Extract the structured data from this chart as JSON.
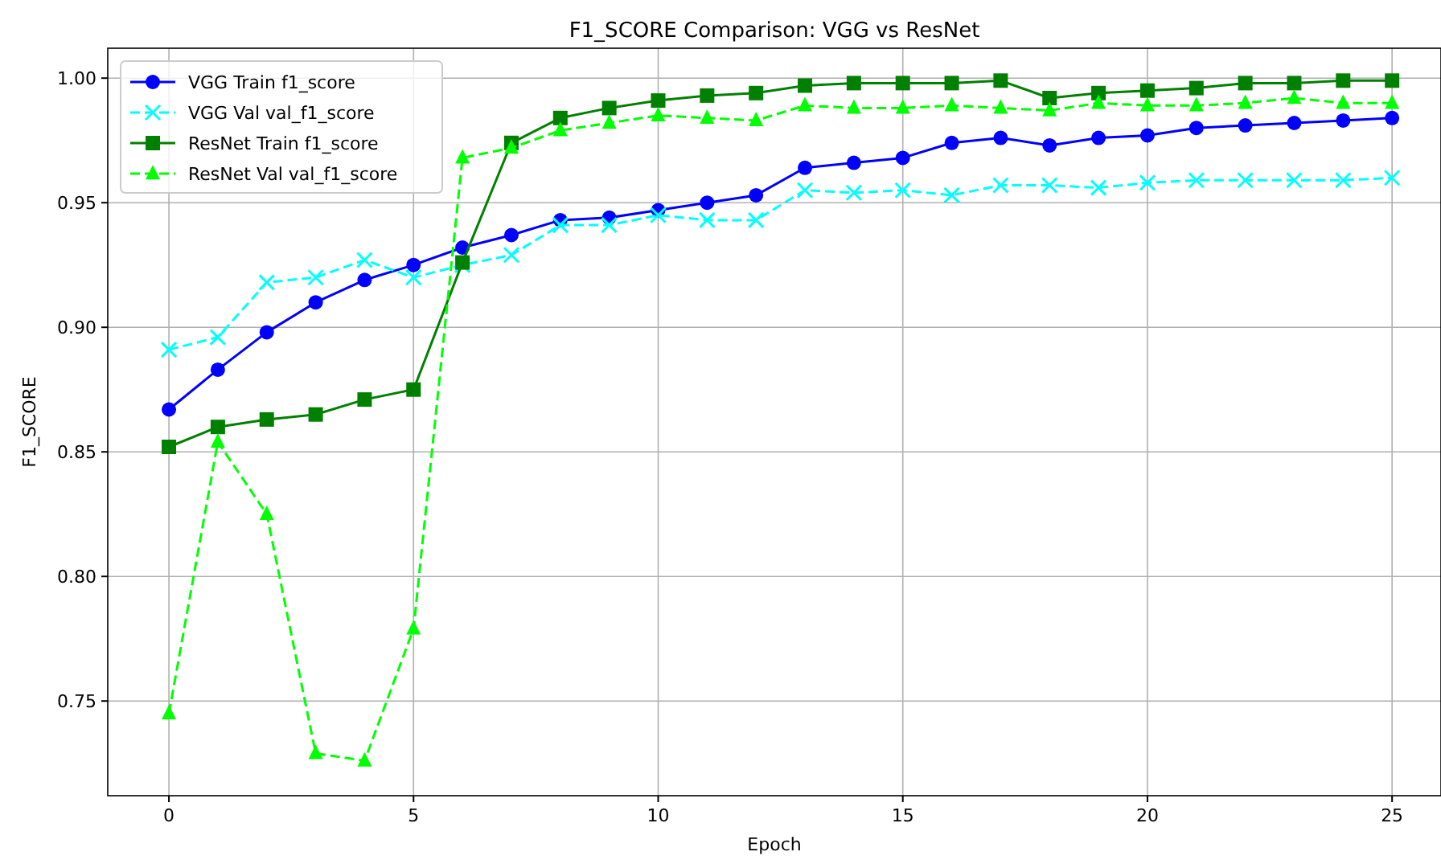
{
  "chart_data": {
    "type": "line",
    "title": "F1_SCORE Comparison: VGG vs ResNet",
    "xlabel": "Epoch",
    "ylabel": "F1_SCORE",
    "x": [
      0,
      1,
      2,
      3,
      4,
      5,
      6,
      7,
      8,
      9,
      10,
      11,
      12,
      13,
      14,
      15,
      16,
      17,
      18,
      19,
      20,
      21,
      22,
      23,
      24,
      25
    ],
    "xlim": [
      -1.25,
      26
    ],
    "xticks": [
      0,
      5,
      10,
      15,
      20,
      25
    ],
    "ylim": [
      0.712,
      1.012
    ],
    "yticks": [
      {
        "value": 0.75,
        "label": "0.75"
      },
      {
        "value": 0.8,
        "label": "0.80"
      },
      {
        "value": 0.85,
        "label": "0.85"
      },
      {
        "value": 0.9,
        "label": "0.90"
      },
      {
        "value": 0.95,
        "label": "0.95"
      },
      {
        "value": 1.0,
        "label": "1.00"
      }
    ],
    "grid": true,
    "legend": "top left",
    "series": [
      {
        "name": "VGG Train f1_score",
        "color": "#0000ff",
        "marker": "circle",
        "line_style": "solid",
        "values": [
          0.867,
          0.883,
          0.898,
          0.91,
          0.919,
          0.925,
          0.932,
          0.937,
          0.943,
          0.944,
          0.947,
          0.95,
          0.953,
          0.964,
          0.966,
          0.968,
          0.974,
          0.976,
          0.973,
          0.976,
          0.977,
          0.98,
          0.981,
          0.982,
          0.983,
          0.984
        ]
      },
      {
        "name": "VGG Val val_f1_score",
        "color": "#00ffff",
        "marker": "cross",
        "line_style": "dashed",
        "values": [
          0.891,
          0.896,
          0.918,
          0.92,
          0.927,
          0.92,
          0.925,
          0.929,
          0.941,
          0.941,
          0.945,
          0.943,
          0.943,
          0.955,
          0.954,
          0.955,
          0.953,
          0.957,
          0.957,
          0.956,
          0.958,
          0.959,
          0.959,
          0.959,
          0.959,
          0.96
        ]
      },
      {
        "name": "ResNet Train f1_score",
        "color": "#008000",
        "marker": "square",
        "line_style": "solid",
        "values": [
          0.852,
          0.86,
          0.863,
          0.865,
          0.871,
          0.875,
          0.926,
          0.974,
          0.984,
          0.988,
          0.991,
          0.993,
          0.994,
          0.997,
          0.998,
          0.998,
          0.998,
          0.999,
          0.992,
          0.994,
          0.995,
          0.996,
          0.998,
          0.998,
          0.999,
          0.999
        ]
      },
      {
        "name": "ResNet Val val_f1_score",
        "color": "#00ff00",
        "marker": "triangle",
        "line_style": "dashed",
        "values": [
          0.745,
          0.854,
          0.825,
          0.729,
          0.726,
          0.779,
          0.968,
          0.972,
          0.979,
          0.982,
          0.985,
          0.984,
          0.983,
          0.989,
          0.988,
          0.988,
          0.989,
          0.988,
          0.987,
          0.99,
          0.989,
          0.989,
          0.99,
          0.992,
          0.99,
          0.99
        ]
      }
    ]
  }
}
